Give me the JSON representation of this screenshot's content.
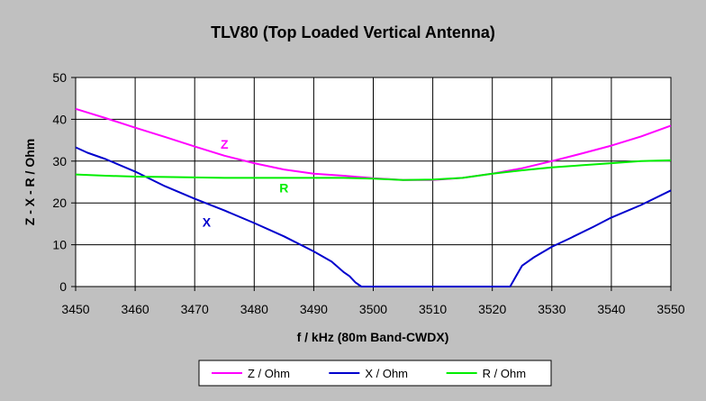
{
  "chart_data": {
    "type": "line",
    "title": "TLV80 (Top Loaded Vertical Antenna)",
    "xlabel": "f / kHz (80m Band-CWDX)",
    "ylabel": "Z - X - R / Ohm",
    "xlim": [
      3450,
      3550
    ],
    "ylim": [
      0,
      50
    ],
    "x_ticks": [
      3450,
      3460,
      3470,
      3480,
      3490,
      3500,
      3510,
      3520,
      3530,
      3540,
      3550
    ],
    "y_ticks": [
      0,
      10,
      20,
      30,
      40,
      50
    ],
    "grid": true,
    "legend_position": "bottom-center",
    "series": [
      {
        "name": "Z / Ohm",
        "color": "#ff00ff",
        "label": "Z",
        "label_at": [
          3475,
          33
        ],
        "x": [
          3450,
          3455,
          3460,
          3465,
          3470,
          3475,
          3480,
          3485,
          3490,
          3495,
          3500,
          3505,
          3510,
          3515,
          3520,
          3525,
          3530,
          3535,
          3540,
          3545,
          3550
        ],
        "y": [
          42.5,
          40.3,
          38.0,
          35.8,
          33.5,
          31.3,
          29.5,
          28.0,
          27.0,
          26.5,
          25.9,
          25.5,
          25.5,
          26.0,
          27.0,
          28.3,
          30.0,
          31.8,
          33.7,
          35.9,
          38.5
        ]
      },
      {
        "name": "X / Ohm",
        "color": "#0000cd",
        "label": "X",
        "label_at": [
          3472,
          14.3
        ],
        "x": [
          3450,
          3452,
          3455,
          3460,
          3465,
          3470,
          3475,
          3480,
          3485,
          3490,
          3493,
          3495,
          3496,
          3497,
          3498,
          3505,
          3510,
          3515,
          3520,
          3522,
          3523,
          3524,
          3525,
          3527,
          3530,
          3533,
          3537,
          3540,
          3545,
          3550
        ],
        "y": [
          33.3,
          32.0,
          30.5,
          27.5,
          24.0,
          21.0,
          18.2,
          15.2,
          12.0,
          8.4,
          6.0,
          3.5,
          2.5,
          1.0,
          0,
          0,
          0,
          0,
          0,
          0,
          0,
          2.5,
          5.0,
          7.0,
          9.5,
          11.5,
          14.3,
          16.5,
          19.5,
          23.0
        ]
      },
      {
        "name": "R / Ohm",
        "color": "#00ee00",
        "label": "R",
        "label_at": [
          3485,
          22.5
        ],
        "x": [
          3450,
          3455,
          3460,
          3465,
          3470,
          3475,
          3480,
          3485,
          3490,
          3495,
          3500,
          3505,
          3510,
          3515,
          3520,
          3525,
          3530,
          3535,
          3540,
          3545,
          3550
        ],
        "y": [
          26.8,
          26.5,
          26.3,
          26.2,
          26.1,
          26.0,
          26.0,
          26.0,
          26.0,
          26.0,
          25.8,
          25.5,
          25.6,
          26.0,
          27.0,
          27.8,
          28.5,
          29.0,
          29.5,
          30.0,
          30.2
        ]
      }
    ]
  }
}
